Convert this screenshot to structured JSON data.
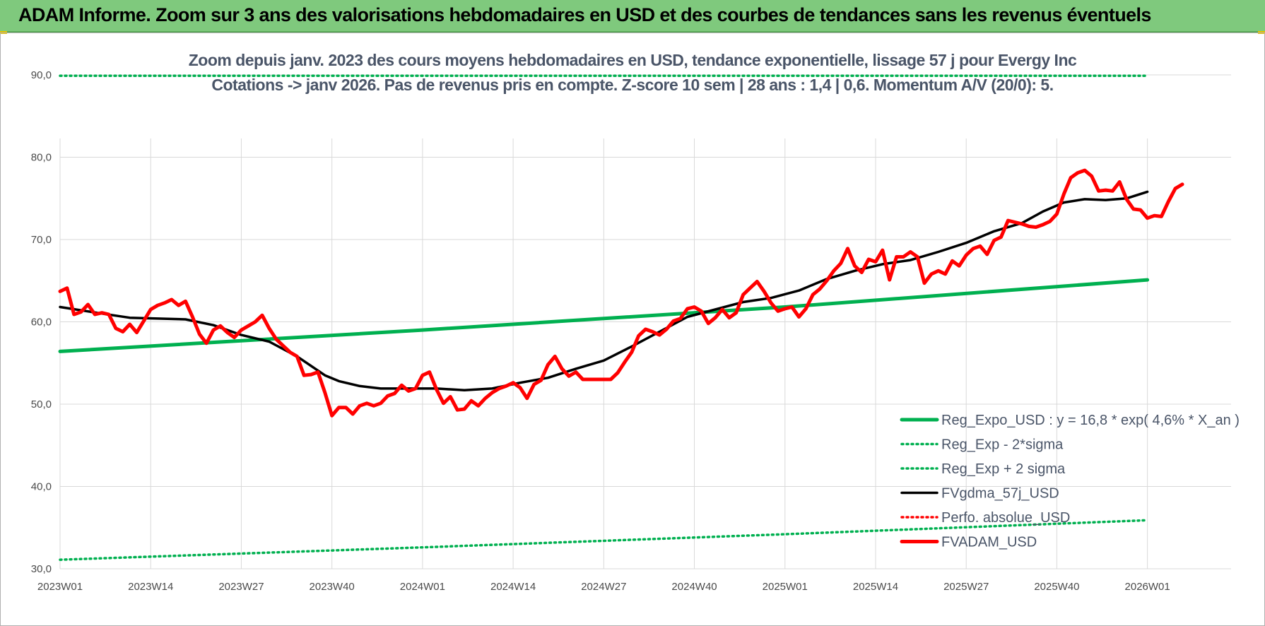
{
  "header": {
    "title": "ADAM Informe. Zoom sur 3 ans des valorisations hebdomadaires en USD et des courbes de tendances sans les revenus éventuels",
    "subtitle_line1": "Zoom depuis janv. 2023 des cours moyens hebdomadaires en USD, tendance exponentielle, lissage 57 j pour Evergy Inc",
    "subtitle_line2": "Cotations -> janv 2026. Pas de revenus pris en compte. Z-score 10 sem | 28 ans : 1,4 | 0,6. Momentum A/V (20/0): 5."
  },
  "colors": {
    "banner": "#7fc97d",
    "reg_expo": "#00b050",
    "sigma": "#00b050",
    "fvgdma": "#000000",
    "perfo": "#ff0000",
    "fvadam": "#ff0000",
    "grid": "#d9d9d9"
  },
  "chart_data": {
    "type": "line",
    "x_tick_labels": [
      "2023W01",
      "2023W14",
      "2023W27",
      "2023W40",
      "2024W01",
      "2024W14",
      "2024W27",
      "2024W40",
      "2025W01",
      "2025W14",
      "2025W27",
      "2025W40",
      "2026W01"
    ],
    "y_tick_labels": [
      "30,0",
      "40,0",
      "50,0",
      "60,0",
      "70,0",
      "80,0",
      "90,0"
    ],
    "ylim": [
      30,
      90
    ],
    "grid": true,
    "legend_position": "bottom-right",
    "series": [
      {
        "name": "Reg_Expo_USD : y = 16,8 * exp( 4,6% *  X_an )",
        "style": "thick-solid",
        "color": "#00b050",
        "points": [
          [
            0,
            56.4
          ],
          [
            52,
            59.0
          ],
          [
            104,
            61.8
          ],
          [
            156,
            65.1
          ]
        ]
      },
      {
        "name": "Reg_Exp - 2*sigma",
        "style": "dotted",
        "color": "#00b050",
        "points": [
          [
            0,
            31.1
          ],
          [
            52,
            32.6
          ],
          [
            104,
            34.2
          ],
          [
            156,
            35.9
          ]
        ]
      },
      {
        "name": "Reg_Exp + 2 sigma",
        "style": "dotted",
        "color": "#00b050",
        "points": [
          [
            0,
            89.9
          ],
          [
            156,
            89.9
          ]
        ]
      },
      {
        "name": "FVgdma_57j_USD",
        "style": "solid",
        "color": "#000000",
        "points": [
          [
            0,
            61.8
          ],
          [
            6,
            61.0
          ],
          [
            10,
            60.5
          ],
          [
            18,
            60.3
          ],
          [
            22,
            59.6
          ],
          [
            26,
            58.4
          ],
          [
            30,
            57.6
          ],
          [
            34,
            55.8
          ],
          [
            38,
            53.5
          ],
          [
            40,
            52.8
          ],
          [
            43,
            52.2
          ],
          [
            46,
            51.9
          ],
          [
            50,
            51.9
          ],
          [
            54,
            51.9
          ],
          [
            58,
            51.7
          ],
          [
            62,
            51.9
          ],
          [
            66,
            52.6
          ],
          [
            70,
            53.2
          ],
          [
            74,
            54.3
          ],
          [
            78,
            55.3
          ],
          [
            82,
            57.0
          ],
          [
            86,
            58.8
          ],
          [
            90,
            60.6
          ],
          [
            94,
            61.5
          ],
          [
            98,
            62.4
          ],
          [
            102,
            62.9
          ],
          [
            106,
            63.8
          ],
          [
            110,
            65.2
          ],
          [
            114,
            66.2
          ],
          [
            118,
            67.0
          ],
          [
            122,
            67.5
          ],
          [
            126,
            68.5
          ],
          [
            130,
            69.6
          ],
          [
            134,
            71.0
          ],
          [
            138,
            72.0
          ],
          [
            141,
            73.4
          ],
          [
            144,
            74.5
          ],
          [
            147,
            74.9
          ],
          [
            150,
            74.8
          ],
          [
            153,
            75.0
          ],
          [
            156,
            75.8
          ]
        ]
      },
      {
        "name": "Perfo. absolue_USD",
        "style": "dotted",
        "color": "#ff0000",
        "points": []
      },
      {
        "name": "FVADAM_USD",
        "style": "thick-solid",
        "color": "#ff0000",
        "points": [
          [
            0,
            63.7
          ],
          [
            1,
            64.1
          ],
          [
            2,
            60.9
          ],
          [
            3,
            61.2
          ],
          [
            4,
            62.1
          ],
          [
            5,
            60.9
          ],
          [
            6,
            61.1
          ],
          [
            7,
            60.9
          ],
          [
            8,
            59.2
          ],
          [
            9,
            58.8
          ],
          [
            10,
            59.7
          ],
          [
            11,
            58.7
          ],
          [
            12,
            60.1
          ],
          [
            13,
            61.5
          ],
          [
            14,
            62.0
          ],
          [
            15,
            62.3
          ],
          [
            16,
            62.7
          ],
          [
            17,
            62.0
          ],
          [
            18,
            62.5
          ],
          [
            19,
            60.6
          ],
          [
            20,
            58.5
          ],
          [
            21,
            57.4
          ],
          [
            22,
            59.0
          ],
          [
            23,
            59.5
          ],
          [
            24,
            58.7
          ],
          [
            25,
            58.1
          ],
          [
            26,
            59.0
          ],
          [
            27,
            59.5
          ],
          [
            28,
            60.0
          ],
          [
            29,
            60.8
          ],
          [
            30,
            59.2
          ],
          [
            31,
            57.9
          ],
          [
            32,
            57.1
          ],
          [
            33,
            56.3
          ],
          [
            34,
            55.8
          ],
          [
            35,
            53.5
          ],
          [
            36,
            53.6
          ],
          [
            37,
            53.9
          ],
          [
            38,
            51.4
          ],
          [
            39,
            48.6
          ],
          [
            40,
            49.6
          ],
          [
            41,
            49.6
          ],
          [
            42,
            48.8
          ],
          [
            43,
            49.8
          ],
          [
            44,
            50.1
          ],
          [
            45,
            49.8
          ],
          [
            46,
            50.1
          ],
          [
            47,
            51.0
          ],
          [
            48,
            51.3
          ],
          [
            49,
            52.3
          ],
          [
            50,
            51.6
          ],
          [
            51,
            51.9
          ],
          [
            52,
            53.5
          ],
          [
            53,
            53.9
          ],
          [
            54,
            51.8
          ],
          [
            55,
            50.1
          ],
          [
            56,
            50.9
          ],
          [
            57,
            49.3
          ],
          [
            58,
            49.4
          ],
          [
            59,
            50.4
          ],
          [
            60,
            49.8
          ],
          [
            61,
            50.7
          ],
          [
            62,
            51.4
          ],
          [
            63,
            51.9
          ],
          [
            64,
            52.2
          ],
          [
            65,
            52.6
          ],
          [
            66,
            52.0
          ],
          [
            67,
            50.7
          ],
          [
            68,
            52.4
          ],
          [
            69,
            52.9
          ],
          [
            70,
            54.8
          ],
          [
            71,
            55.8
          ],
          [
            72,
            54.3
          ],
          [
            73,
            53.4
          ],
          [
            74,
            53.9
          ],
          [
            75,
            53.0
          ],
          [
            76,
            53.0
          ],
          [
            77,
            53.0
          ],
          [
            78,
            53.0
          ],
          [
            79,
            53.0
          ],
          [
            80,
            53.8
          ],
          [
            81,
            55.1
          ],
          [
            82,
            56.3
          ],
          [
            83,
            58.3
          ],
          [
            84,
            59.1
          ],
          [
            85,
            58.8
          ],
          [
            86,
            58.4
          ],
          [
            87,
            59.1
          ],
          [
            88,
            60.1
          ],
          [
            89,
            60.4
          ],
          [
            90,
            61.6
          ],
          [
            91,
            61.8
          ],
          [
            92,
            61.3
          ],
          [
            93,
            59.8
          ],
          [
            94,
            60.5
          ],
          [
            95,
            61.5
          ],
          [
            96,
            60.5
          ],
          [
            97,
            61.1
          ],
          [
            98,
            63.3
          ],
          [
            99,
            64.1
          ],
          [
            100,
            64.9
          ],
          [
            101,
            63.7
          ],
          [
            102,
            62.3
          ],
          [
            103,
            61.3
          ],
          [
            104,
            61.6
          ],
          [
            105,
            61.8
          ],
          [
            106,
            60.6
          ],
          [
            107,
            61.6
          ],
          [
            108,
            63.3
          ],
          [
            109,
            64.0
          ],
          [
            110,
            65.0
          ],
          [
            111,
            66.2
          ],
          [
            112,
            67.1
          ],
          [
            113,
            68.9
          ],
          [
            114,
            66.8
          ],
          [
            115,
            66.0
          ],
          [
            116,
            67.6
          ],
          [
            117,
            67.3
          ],
          [
            118,
            68.7
          ],
          [
            119,
            65.1
          ],
          [
            120,
            67.9
          ],
          [
            121,
            67.9
          ],
          [
            122,
            68.5
          ],
          [
            123,
            67.9
          ],
          [
            124,
            64.7
          ],
          [
            125,
            65.8
          ],
          [
            126,
            66.2
          ],
          [
            127,
            65.8
          ],
          [
            128,
            67.4
          ],
          [
            129,
            66.8
          ],
          [
            130,
            68.1
          ],
          [
            131,
            68.9
          ],
          [
            132,
            69.2
          ],
          [
            133,
            68.2
          ],
          [
            134,
            69.9
          ],
          [
            135,
            70.3
          ],
          [
            136,
            72.3
          ],
          [
            137,
            72.1
          ],
          [
            138,
            71.9
          ],
          [
            139,
            71.6
          ],
          [
            140,
            71.5
          ],
          [
            141,
            71.8
          ],
          [
            142,
            72.2
          ],
          [
            143,
            73.1
          ],
          [
            144,
            75.5
          ],
          [
            145,
            77.5
          ],
          [
            146,
            78.1
          ],
          [
            147,
            78.4
          ],
          [
            148,
            77.7
          ],
          [
            149,
            75.9
          ],
          [
            150,
            76.0
          ],
          [
            151,
            75.9
          ],
          [
            152,
            77.0
          ],
          [
            153,
            74.9
          ],
          [
            154,
            73.7
          ],
          [
            155,
            73.6
          ],
          [
            156,
            72.6
          ],
          [
            157,
            72.9
          ],
          [
            158,
            72.8
          ],
          [
            159,
            74.6
          ],
          [
            160,
            76.2
          ],
          [
            161,
            76.7
          ]
        ]
      }
    ]
  }
}
